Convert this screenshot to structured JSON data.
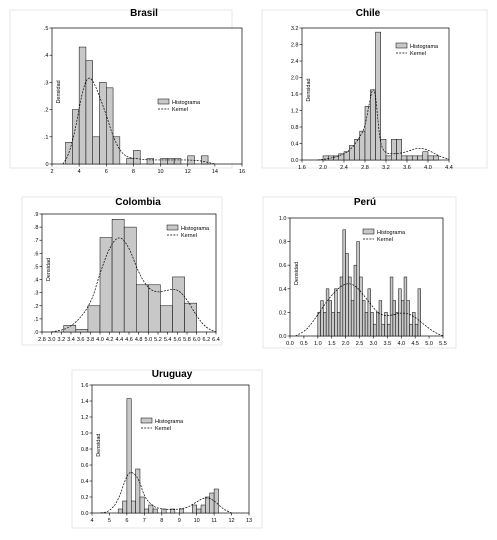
{
  "chart_data": [
    {
      "type": "bar",
      "title": "Brasil",
      "ylabel": "Densidad",
      "xlim": [
        2,
        16
      ],
      "ylim": [
        0,
        0.5
      ],
      "xticks": [
        2,
        4,
        6,
        8,
        10,
        12,
        14,
        16
      ],
      "xtick_labels": [
        "2",
        "4",
        "6",
        "8",
        "10",
        "12",
        "14",
        "16"
      ],
      "yticks": [
        0,
        0.1,
        0.2,
        0.3,
        0.4,
        0.5
      ],
      "ytick_labels": [
        "0",
        ".1",
        ".2",
        ".3",
        ".4",
        ".5"
      ],
      "grid": false,
      "legend_position": "right",
      "legend": [
        "Histograma",
        "Kernel"
      ],
      "bin_width": 0.5,
      "bins": [
        3.0,
        3.5,
        4.0,
        4.5,
        5.0,
        5.5,
        6.0,
        6.5,
        7.0,
        7.5,
        8.0,
        8.5,
        9.0,
        9.5,
        10.0,
        10.5,
        11.0,
        11.5,
        12.0,
        12.5,
        13.0,
        13.5
      ],
      "values": [
        0.08,
        0.2,
        0.43,
        0.38,
        0.1,
        0.3,
        0.28,
        0.1,
        0.0,
        0.02,
        0.05,
        0.0,
        0.02,
        0.0,
        0.02,
        0.02,
        0.02,
        0.0,
        0.03,
        0.0,
        0.03,
        0.0
      ],
      "kernel": [
        [
          2.8,
          0.0
        ],
        [
          3.2,
          0.03
        ],
        [
          3.7,
          0.12
        ],
        [
          4.2,
          0.26
        ],
        [
          4.6,
          0.32
        ],
        [
          5.0,
          0.31
        ],
        [
          5.5,
          0.25
        ],
        [
          6.0,
          0.18
        ],
        [
          6.5,
          0.1
        ],
        [
          7.0,
          0.05
        ],
        [
          7.5,
          0.025
        ],
        [
          8.2,
          0.02
        ],
        [
          9.0,
          0.015
        ],
        [
          10.0,
          0.015
        ],
        [
          11.0,
          0.015
        ],
        [
          12.0,
          0.015
        ],
        [
          13.0,
          0.012
        ],
        [
          14.0,
          0.0
        ]
      ]
    },
    {
      "type": "bar",
      "title": "Chile",
      "ylabel": "Densidad",
      "xlim": [
        1.6,
        4.4
      ],
      "ylim": [
        0,
        3.2
      ],
      "xticks": [
        1.6,
        2.0,
        2.4,
        2.8,
        3.2,
        3.6,
        4.0,
        4.4
      ],
      "xtick_labels": [
        "1.6",
        "2.0",
        "2.4",
        "2.8",
        "3.2",
        "3.6",
        "4.0",
        "4.4"
      ],
      "yticks": [
        0,
        0.4,
        0.8,
        1.2,
        1.6,
        2.0,
        2.4,
        2.8,
        3.2
      ],
      "ytick_labels": [
        "0.0",
        "0.4",
        "0.8",
        "1.2",
        "1.6",
        "2.0",
        "2.4",
        "2.8",
        "3.2"
      ],
      "grid": false,
      "legend_position": "right",
      "legend": [
        "Histograma",
        "Kernel"
      ],
      "bin_width": 0.1,
      "bins": [
        2.0,
        2.1,
        2.2,
        2.3,
        2.4,
        2.5,
        2.6,
        2.7,
        2.8,
        2.9,
        3.0,
        3.1,
        3.2,
        3.3,
        3.4,
        3.5,
        3.6,
        3.7,
        3.8,
        3.9,
        4.0,
        4.1
      ],
      "values": [
        0.1,
        0.1,
        0.1,
        0.15,
        0.2,
        0.35,
        0.5,
        0.7,
        1.3,
        1.7,
        3.1,
        0.5,
        0.1,
        0.5,
        0.5,
        0.1,
        0.1,
        0.1,
        0.1,
        0.2,
        0.1,
        0.1
      ],
      "kernel": [
        [
          1.9,
          0.0
        ],
        [
          2.2,
          0.05
        ],
        [
          2.5,
          0.2
        ],
        [
          2.7,
          0.55
        ],
        [
          2.8,
          0.8
        ],
        [
          2.9,
          1.5
        ],
        [
          2.95,
          1.75
        ],
        [
          3.0,
          1.6
        ],
        [
          3.05,
          0.9
        ],
        [
          3.1,
          0.35
        ],
        [
          3.2,
          0.15
        ],
        [
          3.4,
          0.15
        ],
        [
          3.6,
          0.2
        ],
        [
          3.8,
          0.3
        ],
        [
          4.0,
          0.25
        ],
        [
          4.2,
          0.1
        ],
        [
          4.4,
          0.02
        ]
      ]
    },
    {
      "type": "bar",
      "title": "Colombia",
      "ylabel": "Densidad",
      "xlim": [
        2.8,
        6.4
      ],
      "ylim": [
        0,
        0.9
      ],
      "xticks": [
        2.8,
        3.0,
        3.2,
        3.4,
        3.6,
        3.8,
        4.0,
        4.2,
        4.4,
        4.6,
        4.8,
        5.0,
        5.2,
        5.4,
        5.6,
        5.8,
        6.0,
        6.2,
        6.4
      ],
      "xtick_labels": [
        "2.8",
        "3.0",
        "3.2",
        "3.4",
        "3.6",
        "3.8",
        "4.0",
        "4.2",
        "4.4",
        "4.6",
        "4.8",
        "5.0",
        "5.2",
        "5.4",
        "5.6",
        "5.8",
        "6.0",
        "6.2",
        "6.4"
      ],
      "yticks": [
        0,
        0.1,
        0.2,
        0.3,
        0.4,
        0.5,
        0.6,
        0.7,
        0.8,
        0.9
      ],
      "ytick_labels": [
        ".0",
        ".1",
        ".2",
        ".3",
        ".4",
        ".5",
        ".6",
        ".7",
        ".8",
        ".9"
      ],
      "grid": false,
      "legend_position": "top-right",
      "legend": [
        "Histograma",
        "Kernel"
      ],
      "bin_width": 0.25,
      "bins": [
        3.25,
        3.5,
        3.75,
        4.0,
        4.25,
        4.5,
        4.75,
        5.0,
        5.25,
        5.5,
        5.75
      ],
      "values": [
        0.05,
        0.02,
        0.2,
        0.72,
        0.86,
        0.8,
        0.36,
        0.36,
        0.2,
        0.42,
        0.22
      ],
      "kernel": [
        [
          3.0,
          0.0
        ],
        [
          3.4,
          0.03
        ],
        [
          3.8,
          0.2
        ],
        [
          4.0,
          0.45
        ],
        [
          4.2,
          0.65
        ],
        [
          4.4,
          0.74
        ],
        [
          4.6,
          0.65
        ],
        [
          4.8,
          0.45
        ],
        [
          5.0,
          0.33
        ],
        [
          5.2,
          0.3
        ],
        [
          5.4,
          0.32
        ],
        [
          5.6,
          0.33
        ],
        [
          5.8,
          0.25
        ],
        [
          6.0,
          0.12
        ],
        [
          6.2,
          0.03
        ],
        [
          6.4,
          0.0
        ]
      ]
    },
    {
      "type": "bar",
      "title": "Perú",
      "ylabel": "Densidad",
      "xlim": [
        0.0,
        5.5
      ],
      "ylim": [
        0,
        1.0
      ],
      "xticks": [
        0.0,
        0.5,
        1.0,
        1.5,
        2.0,
        2.5,
        3.0,
        3.5,
        4.0,
        4.5,
        5.0,
        5.5
      ],
      "xtick_labels": [
        "0.0",
        "0.5",
        "1.0",
        "1.5",
        "2.0",
        "2.5",
        "3.0",
        "3.5",
        "4.0",
        "4.5",
        "5.0",
        "5.5"
      ],
      "yticks": [
        0,
        0.2,
        0.4,
        0.6,
        0.8,
        1.0
      ],
      "ytick_labels": [
        "0.0",
        "0.2",
        "0.4",
        "0.6",
        "0.8",
        "1.0"
      ],
      "grid": false,
      "legend_position": "top-right",
      "legend": [
        "Histograma",
        "Kernel"
      ],
      "bin_width": 0.1,
      "bins": [
        1.0,
        1.1,
        1.2,
        1.3,
        1.4,
        1.5,
        1.6,
        1.7,
        1.8,
        1.9,
        2.0,
        2.1,
        2.2,
        2.3,
        2.4,
        2.5,
        2.6,
        2.7,
        2.8,
        2.9,
        3.0,
        3.1,
        3.2,
        3.3,
        3.4,
        3.5,
        3.6,
        3.7,
        3.8,
        3.9,
        4.0,
        4.1,
        4.2,
        4.3,
        4.4,
        4.5,
        4.6
      ],
      "values": [
        0.2,
        0.3,
        0.2,
        0.4,
        0.3,
        0.2,
        0.4,
        0.2,
        0.5,
        0.9,
        0.7,
        0.5,
        0.3,
        0.6,
        0.8,
        0.5,
        0.3,
        0.2,
        0.4,
        0.2,
        0.1,
        0.2,
        0.3,
        0.1,
        0.2,
        0.1,
        0.5,
        0.3,
        0.2,
        0.4,
        0.3,
        0.5,
        0.3,
        0.1,
        0.2,
        0.1,
        0.4
      ],
      "kernel": [
        [
          0.2,
          0.0
        ],
        [
          0.6,
          0.05
        ],
        [
          1.0,
          0.18
        ],
        [
          1.4,
          0.32
        ],
        [
          1.8,
          0.42
        ],
        [
          2.1,
          0.45
        ],
        [
          2.4,
          0.42
        ],
        [
          2.8,
          0.3
        ],
        [
          3.2,
          0.18
        ],
        [
          3.6,
          0.17
        ],
        [
          4.0,
          0.2
        ],
        [
          4.4,
          0.18
        ],
        [
          4.8,
          0.1
        ],
        [
          5.2,
          0.03
        ],
        [
          5.5,
          0.0
        ]
      ]
    },
    {
      "type": "bar",
      "title": "Uruguay",
      "ylabel": "Densidad",
      "xlim": [
        4,
        13
      ],
      "ylim": [
        0,
        1.6
      ],
      "xticks": [
        4,
        5,
        6,
        7,
        8,
        9,
        10,
        11,
        12,
        13
      ],
      "xtick_labels": [
        "4",
        "5",
        "6",
        "7",
        "8",
        "9",
        "10",
        "11",
        "12",
        "13"
      ],
      "yticks": [
        0,
        0.2,
        0.4,
        0.6,
        0.8,
        1.0,
        1.2,
        1.4,
        1.6
      ],
      "ytick_labels": [
        "0.0",
        "0.2",
        "0.4",
        "0.6",
        "0.8",
        "1.0",
        "1.2",
        "1.4",
        "1.6"
      ],
      "grid": false,
      "legend_position": "top-right",
      "legend": [
        "Histograma",
        "Kernel"
      ],
      "bin_width": 0.25,
      "bins": [
        5.5,
        5.75,
        6.0,
        6.25,
        6.5,
        6.75,
        7.0,
        7.25,
        7.5,
        7.75,
        8.0,
        8.25,
        8.5,
        8.75,
        9.0,
        9.25,
        9.5,
        9.75,
        10.0,
        10.25,
        10.5,
        10.75,
        11.0
      ],
      "values": [
        0.05,
        0.15,
        1.43,
        0.15,
        0.55,
        0.2,
        0.05,
        0.1,
        0.05,
        0.0,
        0.05,
        0.0,
        0.05,
        0.0,
        0.05,
        0.0,
        0.0,
        0.1,
        0.05,
        0.1,
        0.2,
        0.25,
        0.3
      ],
      "kernel": [
        [
          4.5,
          0.0
        ],
        [
          5.0,
          0.02
        ],
        [
          5.5,
          0.15
        ],
        [
          6.0,
          0.48
        ],
        [
          6.3,
          0.52
        ],
        [
          6.7,
          0.42
        ],
        [
          7.0,
          0.2
        ],
        [
          7.5,
          0.08
        ],
        [
          8.0,
          0.05
        ],
        [
          8.5,
          0.04
        ],
        [
          9.0,
          0.05
        ],
        [
          9.5,
          0.07
        ],
        [
          10.0,
          0.14
        ],
        [
          10.5,
          0.2
        ],
        [
          11.0,
          0.16
        ],
        [
          11.5,
          0.05
        ],
        [
          12.0,
          0.0
        ]
      ]
    }
  ]
}
